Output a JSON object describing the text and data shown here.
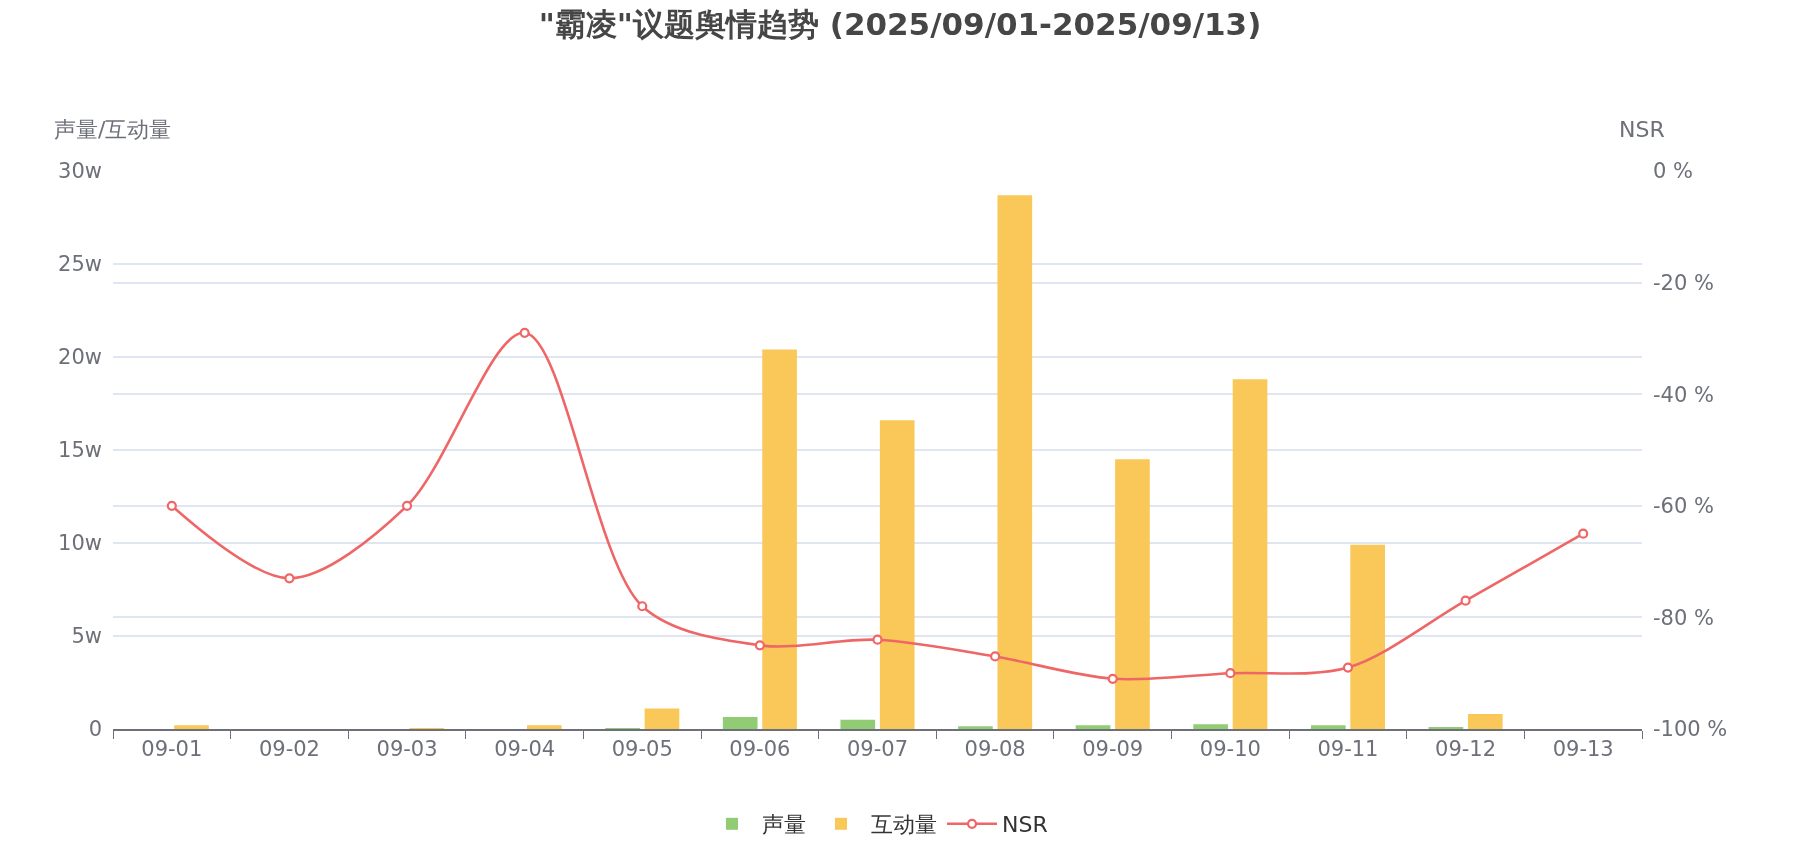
{
  "chart_data": {
    "type": "bar",
    "title": "\"霸凌\"议题舆情趋势 (2025/09/01-2025/09/13)",
    "ylabel": "声量/互动量",
    "y2label": "NSR",
    "categories": [
      "09-01",
      "09-02",
      "09-03",
      "09-04",
      "09-05",
      "09-06",
      "09-07",
      "09-08",
      "09-09",
      "09-10",
      "09-11",
      "09-12",
      "09-13"
    ],
    "series": [
      {
        "name": "声量",
        "color": "#91cc75",
        "values": [
          0,
          0,
          0,
          0,
          0.05,
          0.65,
          0.5,
          0.15,
          0.2,
          0.25,
          0.2,
          0.1,
          0
        ]
      },
      {
        "name": "互动量",
        "color": "#fac858",
        "values": [
          0.2,
          0,
          0.05,
          0.2,
          1.1,
          20.4,
          16.6,
          28.7,
          14.5,
          18.8,
          9.9,
          0.8,
          0
        ]
      },
      {
        "name": "NSR",
        "color": "#ee6666",
        "type": "line",
        "axis": "y2",
        "values": [
          -60,
          -73,
          -60,
          -29,
          -78,
          -85,
          -84,
          -87,
          -91,
          -90,
          -89,
          -77,
          -65
        ]
      }
    ],
    "ylim": [
      0,
      30
    ],
    "yticks": [
      0,
      {
        "value": 5,
        "label": "5w"
      },
      {
        "value": 10,
        "label": "10w"
      },
      {
        "value": 15,
        "label": "15w"
      },
      {
        "value": 20,
        "label": "20w"
      },
      {
        "value": 25,
        "label": "25w"
      },
      {
        "value": 30,
        "label": "30w"
      }
    ],
    "y2lim": [
      -100,
      0
    ],
    "y2ticks": [
      {
        "value": -100,
        "label": "-100 %"
      },
      {
        "value": -80,
        "label": "-80 %"
      },
      {
        "value": -60,
        "label": "-60 %"
      },
      {
        "value": -40,
        "label": "-40 %"
      },
      {
        "value": -20,
        "label": "-20 %"
      },
      {
        "value": 0,
        "label": "0 %"
      }
    ],
    "grid": "y",
    "legend": "bottom",
    "marker": "circle",
    "line_style": "solid"
  }
}
